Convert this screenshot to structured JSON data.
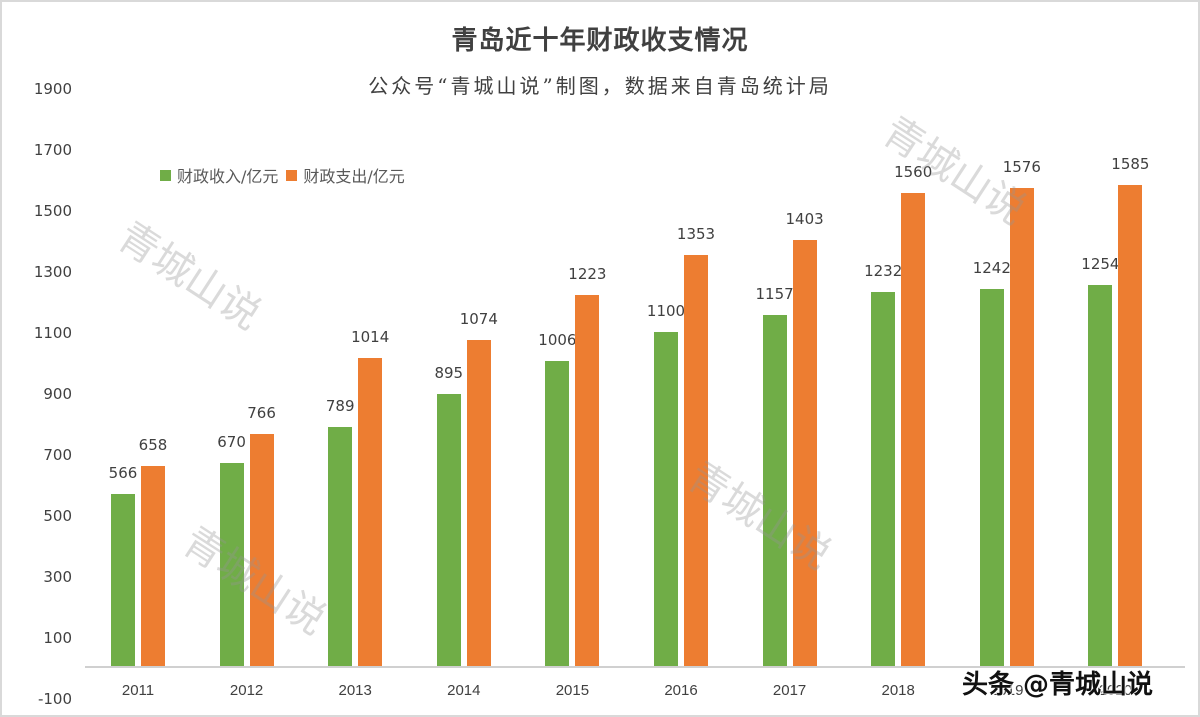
{
  "title": "青岛近十年财政收支情况",
  "subtitle": "公众号“青城山说”制图，数据来自青岛统计局",
  "legend": [
    {
      "label": "财政收入/亿元",
      "color": "#70ad47"
    },
    {
      "label": "财政支出/亿元",
      "color": "#ed7d31"
    }
  ],
  "watermark": "青城山说",
  "brand": "头条 @青城山说",
  "y_ticks": [
    "1900",
    "1700",
    "1500",
    "1300",
    "1100",
    "900",
    "700",
    "500",
    "300",
    "100",
    "-100"
  ],
  "chart_data": {
    "type": "bar",
    "title": "青岛近十年财政收支情况",
    "subtitle": "公众号“青城山说”制图，数据来自青岛统计局",
    "categories": [
      "2011",
      "2012",
      "2013",
      "2014",
      "2015",
      "2016",
      "2017",
      "2018",
      "2019",
      "2020"
    ],
    "series": [
      {
        "name": "财政收入/亿元",
        "color": "#70ad47",
        "values": [
          566,
          670,
          789,
          895,
          1006,
          1100,
          1157,
          1232,
          1242,
          1254
        ]
      },
      {
        "name": "财政支出/亿元",
        "color": "#ed7d31",
        "values": [
          658,
          766,
          1014,
          1074,
          1223,
          1353,
          1403,
          1560,
          1576,
          1585
        ]
      }
    ],
    "xlabel": "",
    "ylabel": "",
    "ylim": [
      -100,
      1900
    ],
    "y_ticks": [
      -100,
      100,
      300,
      500,
      700,
      900,
      1100,
      1300,
      1500,
      1700,
      1900
    ],
    "grid": false,
    "legend_position": "top-left",
    "data_labels": true
  }
}
